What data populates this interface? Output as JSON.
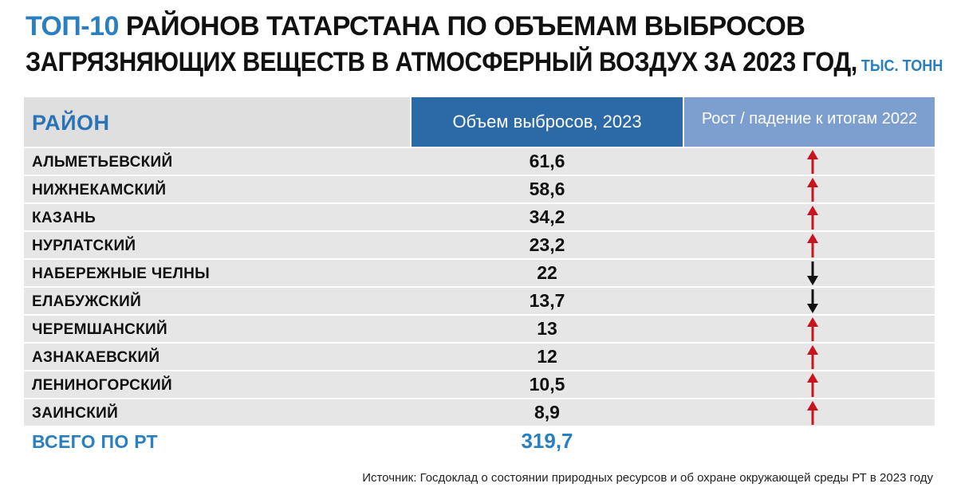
{
  "title": {
    "accent": "ТОП-10",
    "line1_rest": " РАЙОНОВ ТАТАРСТАНА ПО ОБЪЕМАМ ВЫБРОСОВ",
    "line2": "ЗАГРЯЗНЯЮЩИХ ВЕЩЕСТВ В АТМОСФЕРНЫЙ ВОЗДУХ ЗА 2023 ГОД,",
    "unit": " ТЫС. ТОНН"
  },
  "colors": {
    "accent_blue": "#2a7fc0",
    "header_dark_blue": "#2b6aa6",
    "header_light_blue": "#7d9fd0",
    "row_gray": "#e6e6e6",
    "arrow_up": "#c8141e",
    "arrow_down": "#111111"
  },
  "chart_data": {
    "type": "table",
    "columns": [
      "РАЙОН",
      "Объем выбросов, 2023",
      "Рост / падение к итогам 2022"
    ],
    "rows": [
      {
        "name": "АЛЬМЕТЬЕВСКИЙ",
        "value_label": "61,6",
        "value": 61.6,
        "trend": "up"
      },
      {
        "name": "НИЖНЕКАМСКИЙ",
        "value_label": "58,6",
        "value": 58.6,
        "trend": "up"
      },
      {
        "name": "КАЗАНЬ",
        "value_label": "34,2",
        "value": 34.2,
        "trend": "up"
      },
      {
        "name": "НУРЛАТСКИЙ",
        "value_label": "23,2",
        "value": 23.2,
        "trend": "up"
      },
      {
        "name": "НАБЕРЕЖНЫЕ ЧЕЛНЫ",
        "value_label": "22",
        "value": 22,
        "trend": "down"
      },
      {
        "name": "ЕЛАБУЖСКИЙ",
        "value_label": "13,7",
        "value": 13.7,
        "trend": "down"
      },
      {
        "name": "ЧЕРЕМШАНСКИЙ",
        "value_label": "13",
        "value": 13,
        "trend": "up"
      },
      {
        "name": "АЗНАКАЕВСКИЙ",
        "value_label": "12",
        "value": 12,
        "trend": "up"
      },
      {
        "name": "ЛЕНИНОГОРСКИЙ",
        "value_label": "10,5",
        "value": 10.5,
        "trend": "up"
      },
      {
        "name": "ЗАИНСКИЙ",
        "value_label": "8,9",
        "value": 8.9,
        "trend": "up"
      }
    ],
    "total": {
      "name": "ВСЕГО ПО РТ",
      "value_label": "319,7",
      "value": 319.7
    }
  },
  "source": "Источник: Госдоклад о состоянии природных ресурсов и об охране окружающей среды РТ в 2023 году"
}
